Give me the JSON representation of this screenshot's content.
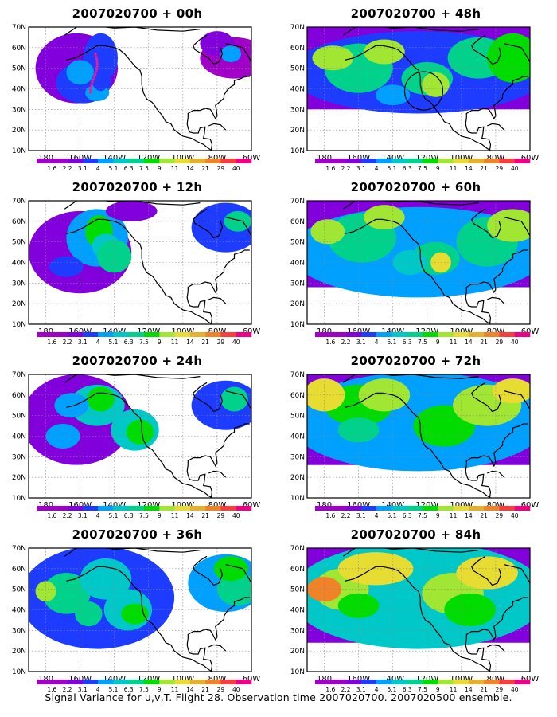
{
  "figure": {
    "caption": "Signal Variance for u,v,T. Flight 28. Observation time 2007020700. 2007020500 ensemble."
  },
  "axes": {
    "lat_ticks": [
      "70N",
      "60N",
      "50N",
      "40N",
      "30N",
      "20N",
      "10N"
    ],
    "lon_ticks": [
      "180",
      "160W",
      "140W",
      "120W",
      "100W",
      "80W",
      "60W"
    ]
  },
  "colorbar": {
    "levels": [
      "1.6",
      "2.2",
      "3.1",
      "4",
      "5.1",
      "6.3",
      "7.5",
      "9",
      "11",
      "14",
      "21",
      "29",
      "40"
    ],
    "colors": [
      "#a000c8",
      "#8200dc",
      "#1e3cff",
      "#00a0ff",
      "#00c8c8",
      "#00d28c",
      "#00dc00",
      "#a0e632",
      "#e6dc32",
      "#e6af2d",
      "#f08228",
      "#fa3c3c",
      "#f00082"
    ]
  },
  "panels": [
    {
      "id": "p00",
      "title": "2007020700 + 00h",
      "lead_hours": 0,
      "track": true,
      "circle": false
    },
    {
      "id": "p48",
      "title": "2007020700 + 48h",
      "lead_hours": 48,
      "track": false,
      "circle": true
    },
    {
      "id": "p12",
      "title": "2007020700 + 12h",
      "lead_hours": 12,
      "track": false,
      "circle": false
    },
    {
      "id": "p60",
      "title": "2007020700 + 60h",
      "lead_hours": 60,
      "track": false,
      "circle": false
    },
    {
      "id": "p24",
      "title": "2007020700 + 24h",
      "lead_hours": 24,
      "track": false,
      "circle": false
    },
    {
      "id": "p72",
      "title": "2007020700 + 72h",
      "lead_hours": 72,
      "track": false,
      "circle": false
    },
    {
      "id": "p36",
      "title": "2007020700 + 36h",
      "lead_hours": 36,
      "track": false,
      "circle": false
    },
    {
      "id": "p84",
      "title": "2007020700 + 84h",
      "lead_hours": 84,
      "track": false,
      "circle": false
    }
  ]
}
